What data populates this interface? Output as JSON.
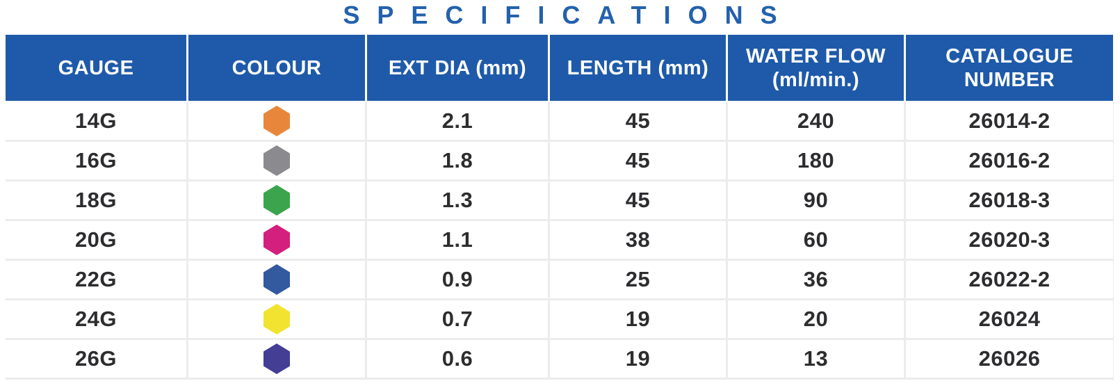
{
  "title": "SPECIFICATIONS",
  "colors": {
    "title_text": "#2361AC",
    "header_bg": "#1E5AA9",
    "header_text": "#FFFFFF",
    "body_text": "#2D2D30",
    "separator": "#ECECEC"
  },
  "table": {
    "columns": [
      {
        "key": "gauge",
        "label": "GAUGE"
      },
      {
        "key": "colour",
        "label": "COLOUR"
      },
      {
        "key": "ext_dia",
        "label": "EXT DIA (mm)"
      },
      {
        "key": "length",
        "label": "LENGTH (mm)"
      },
      {
        "key": "water_flow",
        "label": "WATER FLOW\n(ml/min.)"
      },
      {
        "key": "catalogue",
        "label": "CATALOGUE\nNUMBER"
      }
    ],
    "rows": [
      {
        "gauge": "14G",
        "colour_name": "orange",
        "colour_hex": "#E8873C",
        "ext_dia": "2.1",
        "length": "45",
        "water_flow": "240",
        "catalogue": "26014-2"
      },
      {
        "gauge": "16G",
        "colour_name": "grey",
        "colour_hex": "#8B8B8F",
        "ext_dia": "1.8",
        "length": "45",
        "water_flow": "180",
        "catalogue": "26016-2"
      },
      {
        "gauge": "18G",
        "colour_name": "green",
        "colour_hex": "#3BA44C",
        "ext_dia": "1.3",
        "length": "45",
        "water_flow": "90",
        "catalogue": "26018-3"
      },
      {
        "gauge": "20G",
        "colour_name": "pink",
        "colour_hex": "#D31F7E",
        "ext_dia": "1.1",
        "length": "38",
        "water_flow": "60",
        "catalogue": "26020-3"
      },
      {
        "gauge": "22G",
        "colour_name": "blue",
        "colour_hex": "#33599F",
        "ext_dia": "0.9",
        "length": "25",
        "water_flow": "36",
        "catalogue": "26022-2"
      },
      {
        "gauge": "24G",
        "colour_name": "yellow",
        "colour_hex": "#F2E330",
        "ext_dia": "0.7",
        "length": "19",
        "water_flow": "20",
        "catalogue": "26024"
      },
      {
        "gauge": "26G",
        "colour_name": "violet",
        "colour_hex": "#443E94",
        "ext_dia": "0.6",
        "length": "19",
        "water_flow": "13",
        "catalogue": "26026"
      }
    ]
  }
}
